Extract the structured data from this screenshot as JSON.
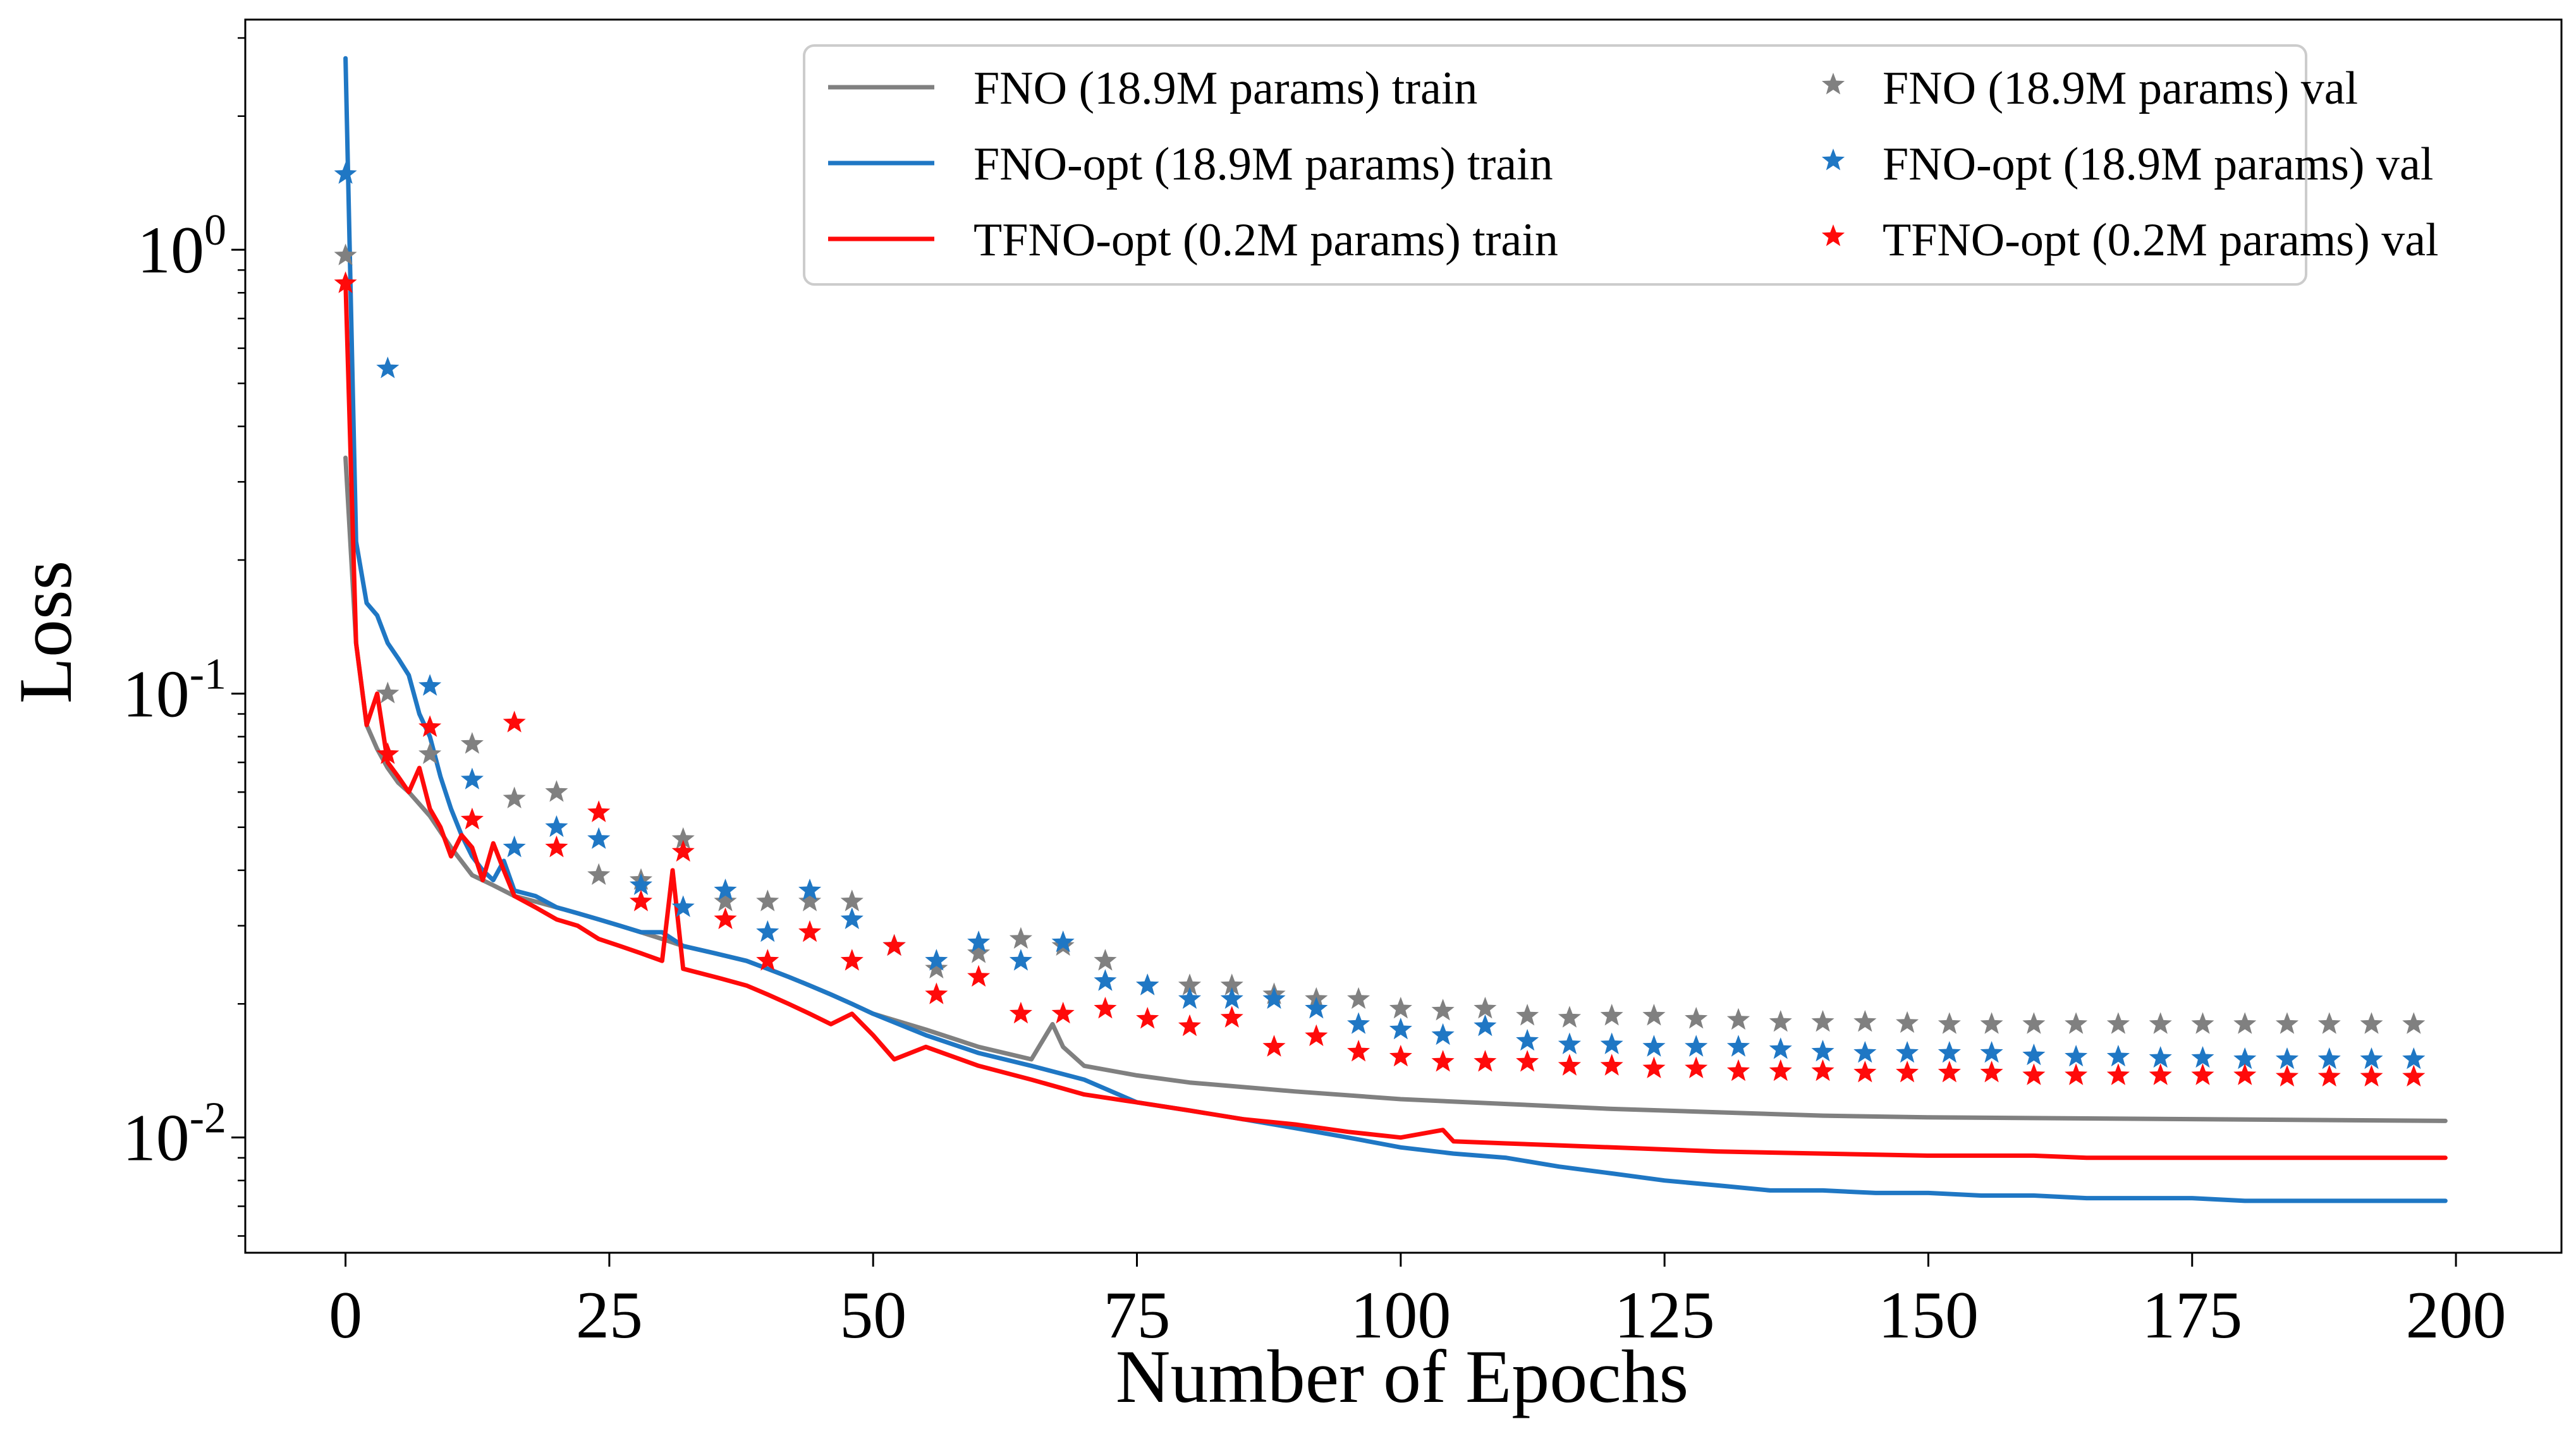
{
  "chart_data": {
    "type": "line",
    "title": "",
    "xlabel": "Number of Epochs",
    "ylabel": "Loss",
    "xlim": [
      -9.5,
      210
    ],
    "ylim": [
      0.0055,
      3.3
    ],
    "yscale": "log",
    "grid": false,
    "legend_position": "top-right",
    "x_ticks": [
      {
        "value": 0,
        "label": "0"
      },
      {
        "value": 25,
        "label": "25"
      },
      {
        "value": 50,
        "label": "50"
      },
      {
        "value": 75,
        "label": "75"
      },
      {
        "value": 100,
        "label": "100"
      },
      {
        "value": 125,
        "label": "125"
      },
      {
        "value": 150,
        "label": "150"
      },
      {
        "value": 175,
        "label": "175"
      },
      {
        "value": 200,
        "label": "200"
      }
    ],
    "y_ticks": [
      {
        "value": 1,
        "base": "10",
        "exp": "0"
      },
      {
        "value": 0.1,
        "base": "10",
        "exp": "-1"
      },
      {
        "value": 0.01,
        "base": "10",
        "exp": "-2"
      }
    ],
    "colors": {
      "fno": "#808080",
      "fno_opt": "#1f77c4",
      "tfno_opt": "#ff0a0a"
    },
    "series": [
      {
        "name": "FNO (18.9M params) train",
        "kind": "line",
        "color": "#808080",
        "x": [
          0,
          1,
          2,
          3,
          4,
          5,
          6,
          8,
          10,
          12,
          14,
          16,
          18,
          20,
          22,
          24,
          26,
          28,
          30,
          32,
          35,
          38,
          40,
          42,
          44,
          46,
          48,
          50,
          55,
          60,
          65,
          67,
          68,
          70,
          75,
          80,
          90,
          100,
          110,
          120,
          130,
          140,
          150,
          175,
          199
        ],
        "y": [
          0.34,
          0.13,
          0.085,
          0.075,
          0.068,
          0.063,
          0.06,
          0.053,
          0.045,
          0.039,
          0.037,
          0.035,
          0.034,
          0.033,
          0.032,
          0.031,
          0.03,
          0.029,
          0.028,
          0.027,
          0.026,
          0.025,
          0.024,
          0.023,
          0.022,
          0.021,
          0.02,
          0.019,
          0.0175,
          0.016,
          0.015,
          0.018,
          0.016,
          0.0145,
          0.0138,
          0.0133,
          0.0127,
          0.0122,
          0.0119,
          0.0116,
          0.0114,
          0.0112,
          0.0111,
          0.011,
          0.0109
        ]
      },
      {
        "name": "FNO-opt (18.9M params) train",
        "kind": "line",
        "color": "#1f77c4",
        "x": [
          0,
          1,
          2,
          3,
          4,
          5,
          6,
          7,
          8,
          9,
          10,
          11,
          12,
          13,
          14,
          15,
          16,
          18,
          20,
          22,
          24,
          26,
          28,
          30,
          32,
          35,
          38,
          40,
          42,
          44,
          46,
          48,
          50,
          55,
          60,
          65,
          70,
          75,
          80,
          85,
          90,
          95,
          100,
          105,
          110,
          115,
          120,
          125,
          130,
          135,
          140,
          145,
          150,
          155,
          160,
          165,
          170,
          175,
          180,
          185,
          190,
          199
        ],
        "y": [
          2.7,
          0.22,
          0.16,
          0.15,
          0.13,
          0.12,
          0.11,
          0.09,
          0.08,
          0.065,
          0.055,
          0.048,
          0.043,
          0.04,
          0.038,
          0.042,
          0.036,
          0.035,
          0.033,
          0.032,
          0.031,
          0.03,
          0.029,
          0.029,
          0.027,
          0.026,
          0.025,
          0.024,
          0.023,
          0.022,
          0.021,
          0.02,
          0.019,
          0.017,
          0.0155,
          0.0145,
          0.0135,
          0.012,
          0.0115,
          0.011,
          0.0105,
          0.01,
          0.0095,
          0.0092,
          0.009,
          0.0086,
          0.0083,
          0.008,
          0.0078,
          0.0076,
          0.0076,
          0.0075,
          0.0075,
          0.0074,
          0.0074,
          0.0073,
          0.0073,
          0.0073,
          0.0072,
          0.0072,
          0.0072,
          0.0072
        ]
      },
      {
        "name": "TFNO-opt (0.2M params) train",
        "kind": "line",
        "color": "#ff0a0a",
        "x": [
          0,
          1,
          2,
          3,
          4,
          5,
          6,
          7,
          8,
          9,
          10,
          11,
          12,
          13,
          14,
          15,
          16,
          18,
          20,
          22,
          24,
          26,
          28,
          30,
          31,
          32,
          35,
          38,
          40,
          42,
          44,
          46,
          48,
          50,
          52,
          55,
          60,
          65,
          70,
          75,
          80,
          85,
          90,
          95,
          100,
          104,
          105,
          110,
          115,
          120,
          125,
          130,
          140,
          150,
          160,
          165,
          170,
          180,
          199
        ],
        "y": [
          0.85,
          0.13,
          0.085,
          0.1,
          0.07,
          0.065,
          0.06,
          0.068,
          0.055,
          0.05,
          0.043,
          0.048,
          0.045,
          0.038,
          0.046,
          0.04,
          0.035,
          0.033,
          0.031,
          0.03,
          0.028,
          0.027,
          0.026,
          0.025,
          0.04,
          0.024,
          0.023,
          0.022,
          0.021,
          0.02,
          0.019,
          0.018,
          0.019,
          0.017,
          0.015,
          0.016,
          0.0145,
          0.0135,
          0.0125,
          0.012,
          0.0115,
          0.011,
          0.0107,
          0.0103,
          0.01,
          0.0104,
          0.0098,
          0.0097,
          0.0096,
          0.0095,
          0.0094,
          0.0093,
          0.0092,
          0.0091,
          0.0091,
          0.009,
          0.009,
          0.009,
          0.009
        ]
      },
      {
        "name": "FNO (18.9M params) val",
        "kind": "scatter",
        "color": "#808080",
        "x": [
          0,
          4,
          8,
          12,
          16,
          20,
          24,
          28,
          32,
          36,
          40,
          44,
          48,
          52,
          56,
          60,
          64,
          68,
          72,
          76,
          80,
          84,
          88,
          92,
          96,
          100,
          104,
          108,
          112,
          116,
          120,
          124,
          128,
          132,
          136,
          140,
          144,
          148,
          152,
          156,
          160,
          164,
          168,
          172,
          176,
          180,
          184,
          188,
          192,
          196
        ],
        "y": [
          0.97,
          0.1,
          0.073,
          0.077,
          0.058,
          0.06,
          0.039,
          0.038,
          0.047,
          0.034,
          0.034,
          0.034,
          0.034,
          0.027,
          0.024,
          0.026,
          0.028,
          0.027,
          0.025,
          0.022,
          0.022,
          0.022,
          0.021,
          0.0205,
          0.0205,
          0.0195,
          0.0193,
          0.0195,
          0.0188,
          0.0186,
          0.0188,
          0.0188,
          0.0185,
          0.0184,
          0.0182,
          0.0182,
          0.0182,
          0.0181,
          0.018,
          0.018,
          0.018,
          0.018,
          0.018,
          0.018,
          0.018,
          0.018,
          0.018,
          0.018,
          0.018,
          0.018
        ]
      },
      {
        "name": "FNO-opt (18.9M params) val",
        "kind": "scatter",
        "color": "#1f77c4",
        "x": [
          0,
          4,
          8,
          12,
          16,
          20,
          24,
          28,
          32,
          36,
          40,
          44,
          48,
          52,
          56,
          60,
          64,
          68,
          72,
          76,
          80,
          84,
          88,
          92,
          96,
          100,
          104,
          108,
          112,
          116,
          120,
          124,
          128,
          132,
          136,
          140,
          144,
          148,
          152,
          156,
          160,
          164,
          168,
          172,
          176,
          180,
          184,
          188,
          192,
          196
        ],
        "y": [
          1.48,
          0.54,
          0.104,
          0.064,
          0.045,
          0.05,
          0.047,
          0.037,
          0.033,
          0.036,
          0.029,
          0.036,
          0.031,
          0.027,
          0.025,
          0.0275,
          0.025,
          0.0275,
          0.0225,
          0.022,
          0.0205,
          0.0205,
          0.0205,
          0.0195,
          0.018,
          0.0175,
          0.017,
          0.0178,
          0.0165,
          0.0162,
          0.0162,
          0.016,
          0.016,
          0.016,
          0.0158,
          0.0156,
          0.0155,
          0.0155,
          0.0155,
          0.0155,
          0.0153,
          0.0152,
          0.0152,
          0.0151,
          0.0151,
          0.015,
          0.015,
          0.015,
          0.015,
          0.015
        ]
      },
      {
        "name": "TFNO-opt (0.2M params) val",
        "kind": "scatter",
        "color": "#ff0a0a",
        "x": [
          0,
          4,
          8,
          12,
          16,
          20,
          24,
          28,
          32,
          36,
          40,
          44,
          48,
          52,
          56,
          60,
          64,
          68,
          72,
          76,
          80,
          84,
          88,
          92,
          96,
          100,
          104,
          108,
          112,
          116,
          120,
          124,
          128,
          132,
          136,
          140,
          144,
          148,
          152,
          156,
          160,
          164,
          168,
          172,
          176,
          180,
          184,
          188,
          192,
          196
        ],
        "y": [
          0.84,
          0.073,
          0.084,
          0.052,
          0.086,
          0.045,
          0.054,
          0.034,
          0.044,
          0.031,
          0.025,
          0.029,
          0.025,
          0.027,
          0.021,
          0.023,
          0.019,
          0.019,
          0.0195,
          0.0185,
          0.0178,
          0.0186,
          0.016,
          0.0169,
          0.0156,
          0.0152,
          0.0148,
          0.0148,
          0.0148,
          0.0145,
          0.0145,
          0.0143,
          0.0143,
          0.0141,
          0.0141,
          0.0141,
          0.014,
          0.014,
          0.014,
          0.014,
          0.0138,
          0.0138,
          0.0138,
          0.0138,
          0.0138,
          0.0138,
          0.0137,
          0.0137,
          0.0137,
          0.0137
        ]
      }
    ]
  }
}
